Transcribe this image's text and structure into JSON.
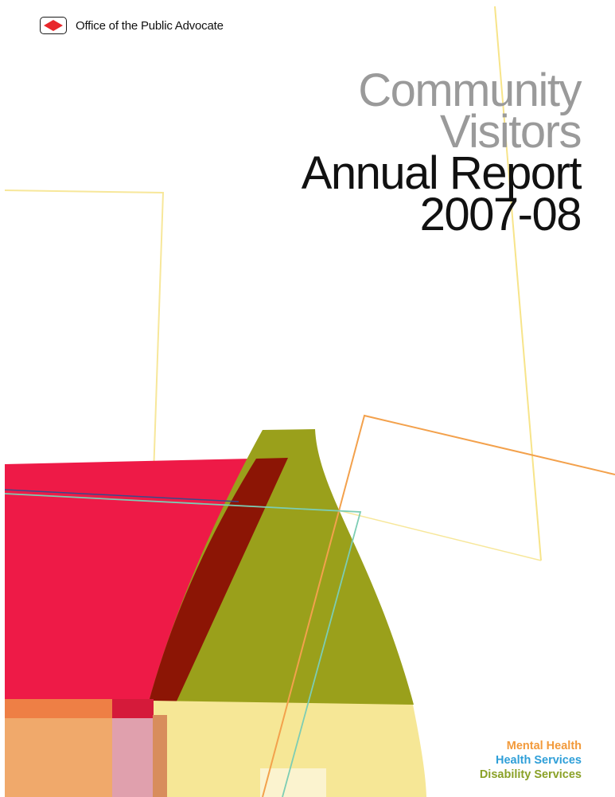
{
  "header": {
    "logo_icon": "diamond-logo-icon",
    "organisation": "Office of the Public Advocate"
  },
  "title": {
    "line1": "Community",
    "line2": "Visitors",
    "line3": "Annual Report",
    "line4": "2007-08"
  },
  "services": {
    "mental_health": "Mental Health",
    "health_services": "Health Services",
    "disability_services": "Disability Services"
  },
  "colors": {
    "logo_red": "#e8272b",
    "title_grey": "#9a9a9a",
    "title_black": "#111111",
    "mental_health": "#f29a3b",
    "health_services": "#2f9fd8",
    "disability_services": "#8aa127",
    "crimson_shape": "#ee1a47",
    "olive_shape": "#9aa01b",
    "yellow_shape": "#f6e796"
  }
}
